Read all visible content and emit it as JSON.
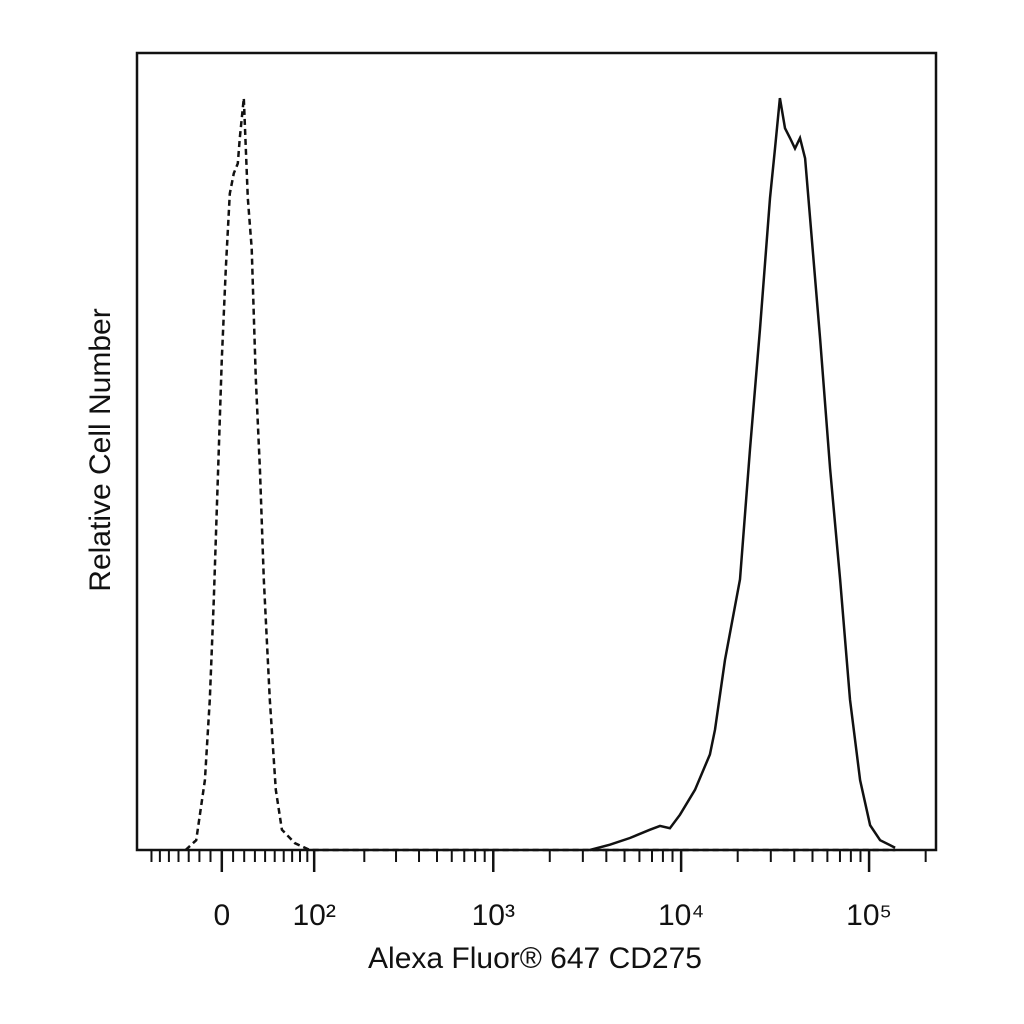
{
  "chart_data": {
    "type": "line",
    "xlabel": "Alexa Fluor® 647 CD275",
    "ylabel": "Relative Cell Number",
    "xscale": "biexponential",
    "xlim": [
      -89,
      227000
    ],
    "ylim": [
      0,
      106
    ],
    "xticks": [
      0,
      {
        "value": 100,
        "label": "10²"
      },
      {
        "value": 1000,
        "label": "10³"
      },
      {
        "value": 10000,
        "label": "10⁴"
      },
      {
        "value": 100000,
        "label": "10⁵"
      }
    ],
    "xminorticks": [
      -70,
      -60,
      -50,
      -40,
      -30,
      -20,
      -10,
      10,
      20,
      30,
      40,
      50,
      60,
      70,
      80,
      90,
      200,
      300,
      400,
      500,
      600,
      700,
      800,
      900,
      2000,
      3000,
      4000,
      5000,
      6000,
      7000,
      8000,
      9000,
      20000,
      30000,
      40000,
      50000,
      60000,
      70000,
      80000,
      90000,
      200000
    ],
    "series": [
      {
        "color": "#111111",
        "dash": "dashed",
        "x": [
          -33,
          -23,
          -15,
          -10.6,
          -7.1,
          -3.5,
          0,
          3.5,
          7.1,
          10.6,
          14.2,
          16,
          19.6,
          23.3,
          27,
          30.9,
          34.8,
          38.7,
          44.8,
          51.2,
          57.9,
          73.4,
          93.7,
          137800
        ],
        "values": [
          0,
          1.3,
          9.3,
          20,
          33.3,
          49.3,
          65.3,
          77.3,
          87.3,
          90,
          91.3,
          94.7,
          100,
          86.7,
          80,
          62.7,
          50.7,
          36,
          20,
          8,
          2.7,
          0.9,
          0,
          0
        ]
      },
      {
        "color": "#111111",
        "dash": "solid",
        "x": [
          3270,
          4180,
          5340,
          6830,
          7720,
          8720,
          9860,
          11850,
          14230,
          15140,
          17110,
          20580,
          23260,
          26280,
          29700,
          31600,
          33550,
          35710,
          37950,
          40350,
          42900,
          45650,
          48530,
          54860,
          62000,
          70090,
          79200,
          89570,
          101200,
          114400,
          137600
        ],
        "values": [
          0,
          0.7,
          1.6,
          2.7,
          3.2,
          2.9,
          4.7,
          8,
          12.7,
          16,
          25.3,
          36,
          53.3,
          69.3,
          86.7,
          93.3,
          100,
          96,
          94.7,
          93.3,
          94.7,
          92,
          84,
          68,
          50.7,
          36,
          20,
          9.3,
          3.3,
          1.3,
          0.3
        ]
      }
    ]
  }
}
